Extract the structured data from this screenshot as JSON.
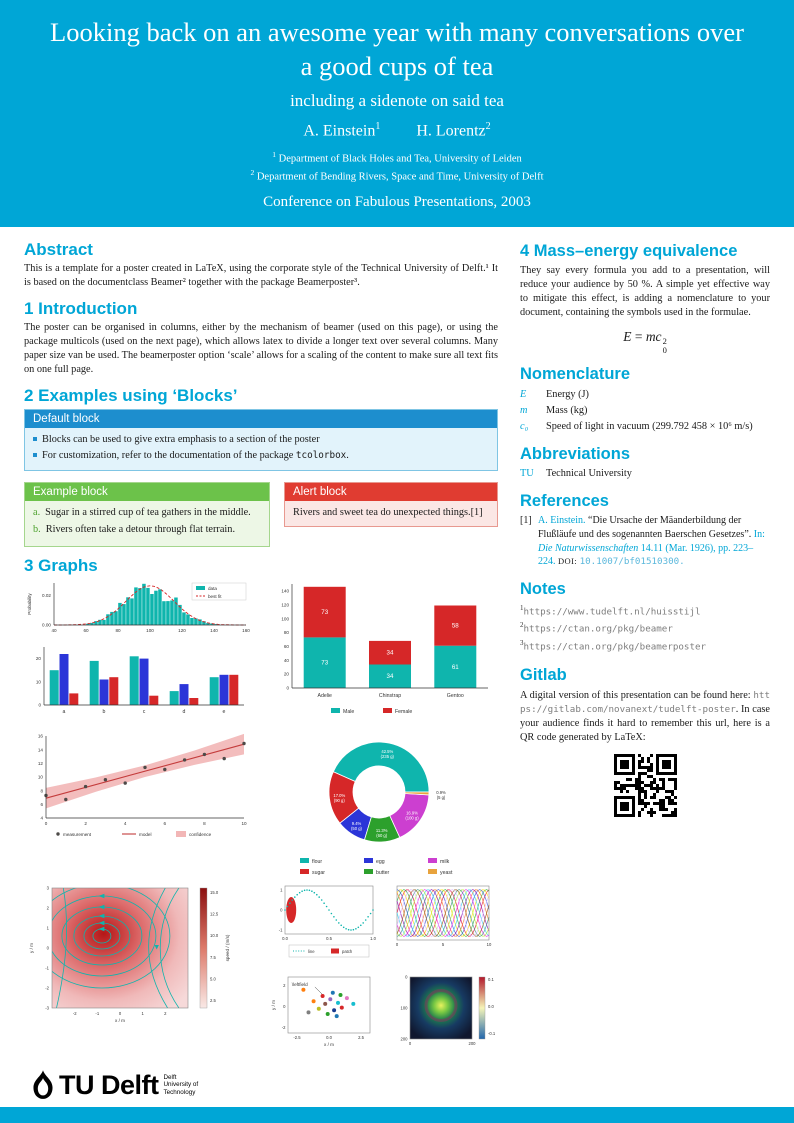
{
  "theme": {
    "accent": "#00A6D6",
    "default_block": "#1d8ece",
    "example_block": "#6CC24A",
    "alert_block": "#E03C31"
  },
  "header": {
    "title": "Looking back on an awesome year with many conversations over a good cups of tea",
    "subtitle": "including a sidenote on said tea",
    "authors": [
      {
        "name": "A. Einstein",
        "mark": "1"
      },
      {
        "name": "H. Lorentz",
        "mark": "2"
      }
    ],
    "affiliations": [
      {
        "mark": "1",
        "text": "Department of Black Holes and Tea, University of Leiden"
      },
      {
        "mark": "2",
        "text": "Department of Bending Rivers, Space and Time, University of Delft"
      }
    ],
    "conference": "Conference on Fabulous Presentations, 2003"
  },
  "abstract": {
    "title": "Abstract",
    "body": "This is a template for a poster created in LaTeX, using the corporate style of the Technical University of Delft.¹ It is based on the documentclass Beamer² together with the package Beamerposter³."
  },
  "introduction": {
    "title": "1 Introduction",
    "body": "The poster can be organised in columns, either by the mechanism of beamer (used on this page), or using the package multicols (used on the next page), which allows latex to divide a longer text over several columns. Many paper size van be used. The beamerposter option ‘scale’ allows for a scaling of the content to make sure all text fits on one full page."
  },
  "blocks": {
    "title": "2 Examples using ‘Blocks’",
    "default": {
      "title": "Default block",
      "items": [
        {
          "text": "Blocks can be used to give extra emphasis to a section of the poster"
        },
        {
          "pre": "For customization, refer to the documentation of the package ",
          "mono": "tcolorbox",
          "post": "."
        }
      ]
    },
    "example": {
      "title": "Example block",
      "items": [
        {
          "label": "a.",
          "text": "Sugar in a stirred cup of tea gathers in the middle."
        },
        {
          "label": "b.",
          "text": "Rivers often take a detour through flat terrain."
        }
      ]
    },
    "alert": {
      "title": "Alert block",
      "text": "Rivers and sweet tea do unexpected things.[1]"
    }
  },
  "graphs": {
    "title": "3 Graphs"
  },
  "mass_energy": {
    "title": "4 Mass–energy equivalence",
    "body": "They say every formula you add to a presentation, will reduce your audience by 50 %. A simple yet effective way to mitigate this effect, is adding a nomenclature to your document, containing the symbols used in the formulae.",
    "formula": {
      "lh s": "",
      "lhs": "E",
      "eq": "=",
      "rhs": "mc",
      "sup": "2",
      "sub": "0"
    }
  },
  "nomenclature": {
    "title": "Nomenclature",
    "entries": [
      {
        "symbol": "E",
        "desc": "Energy (J)"
      },
      {
        "symbol": "m",
        "desc": "Mass (kg)"
      },
      {
        "symbol": "c₀",
        "desc": "Speed of light in vacuum (299.792 458 × 10⁶ m/s)"
      }
    ]
  },
  "abbreviations": {
    "title": "Abbreviations",
    "entries": [
      {
        "abbr": "TU",
        "desc": "Technical University"
      }
    ]
  },
  "references": {
    "title": "References",
    "items": [
      {
        "label": "[1]",
        "author": "A. Einstein. ",
        "title": "“Die Ursache der Mäanderbildung der Flußläufe und des sogenannten Baerschen Gesetzes”. ",
        "in": "In: ",
        "journal": "Die Naturwissenschaften ",
        "pages": "14.11 (Mar. 1926), pp. 223–224. ",
        "doi_label": "DOI: ",
        "doi": "10.1007/bf01510300."
      }
    ]
  },
  "notes": {
    "title": "Notes",
    "items": [
      {
        "mark": "1",
        "url": "https://www.tudelft.nl/huisstijl"
      },
      {
        "mark": "2",
        "url": "https://ctan.org/pkg/beamer"
      },
      {
        "mark": "3",
        "url": "https://ctan.org/pkg/beamerposter"
      }
    ]
  },
  "gitlab": {
    "title": "Gitlab",
    "text_before": "A digital version of this presentation can be found here: ",
    "url": "https://gitlab.com/novanext/tudelft-poster",
    "text_after": ". In case your audience finds it hard to remember this url, here is a QR code generated by LaTeX:"
  },
  "logo": {
    "brand": "TU Delft",
    "sub": [
      "Delft",
      "University of",
      "Technology"
    ]
  },
  "chart_data": [
    {
      "id": "histogram",
      "type": "histogram",
      "ylabel": "Probability",
      "x_range": [
        40,
        160
      ],
      "x_ticks": [
        40,
        60,
        80,
        100,
        120,
        140,
        160
      ],
      "y_ticks": [
        "0.00",
        "0.02"
      ],
      "mean": 100,
      "std": 15,
      "bins": 48,
      "legend": [
        "data",
        "best fit"
      ],
      "colors": {
        "data": "#0fb5ad",
        "fit": "#d62728"
      }
    },
    {
      "id": "grouped_bar",
      "type": "bar",
      "categories": [
        "a",
        "b",
        "c",
        "d",
        "e"
      ],
      "y_ticks": [
        0,
        10,
        20
      ],
      "ylim": [
        0,
        25
      ],
      "series": [
        {
          "color": "#0fb5ad",
          "values": [
            15,
            19,
            21,
            6,
            12
          ]
        },
        {
          "color": "#2b35d8",
          "values": [
            22,
            11,
            20,
            9,
            13
          ]
        },
        {
          "color": "#d62728",
          "values": [
            5,
            12,
            4,
            3,
            13
          ]
        }
      ]
    },
    {
      "id": "stacked_bar",
      "type": "stacked_bar",
      "categories": [
        "Adelie",
        "Chinstrap",
        "Gentoo"
      ],
      "ylim": [
        0,
        150
      ],
      "y_ticks": [
        0,
        20,
        40,
        60,
        80,
        100,
        120,
        140
      ],
      "series": [
        {
          "name": "Male",
          "color": "#0fb5ad",
          "values": [
            73,
            34,
            61
          ]
        },
        {
          "name": "Female",
          "color": "#d62728",
          "values": [
            73,
            34,
            58
          ]
        }
      ]
    },
    {
      "id": "regression",
      "type": "scatter_fit",
      "xlim": [
        0,
        10
      ],
      "ylim": [
        4,
        16
      ],
      "x_ticks": [
        0,
        2,
        4,
        6,
        8,
        10
      ],
      "y_ticks": [
        4,
        6,
        8,
        10,
        12,
        14,
        16
      ],
      "points": [
        [
          0,
          7.3
        ],
        [
          1,
          6.7
        ],
        [
          2,
          8.6
        ],
        [
          3,
          9.6
        ],
        [
          4,
          9.1
        ],
        [
          5,
          11.4
        ],
        [
          6,
          11.1
        ],
        [
          7,
          12.5
        ],
        [
          8,
          13.3
        ],
        [
          9,
          12.7
        ],
        [
          10,
          14.9
        ]
      ],
      "fit": {
        "intercept": 6.9,
        "slope": 0.79
      },
      "legend": [
        "measurement",
        "model",
        "confidence"
      ],
      "colors": {
        "point": "#4d4a48",
        "line": "#c43c3c",
        "band": "#f2b6b6"
      }
    },
    {
      "id": "donut",
      "type": "donut",
      "slices": [
        {
          "label": "flour",
          "pct": 42.5,
          "grams": "235 g",
          "color": "#0fb5ad"
        },
        {
          "label": "sugar",
          "pct": 17.0,
          "grams": "90 g",
          "color": "#d62728"
        },
        {
          "label": "egg",
          "pct": 9.4,
          "grams": "50 g",
          "color": "#2b35d8"
        },
        {
          "label": "butter",
          "pct": 11.3,
          "grams": "60 g",
          "color": "#2ca02c"
        },
        {
          "label": "milk",
          "pct": 16.9,
          "grams": "100 g",
          "color": "#cc3fd0"
        },
        {
          "label": "yeast",
          "pct": 0.9,
          "grams": "5 g",
          "color": "#e8a33d"
        }
      ]
    },
    {
      "id": "streamplot",
      "type": "streamplot",
      "xlabel": "x / m",
      "ylabel": "y / m",
      "x_ticks": [
        -2,
        -1,
        0,
        1,
        2
      ],
      "y_ticks": [
        3,
        2,
        1,
        0,
        -1,
        -2,
        -3
      ],
      "line_color": "#0fb5ad",
      "colorbar": {
        "label": "speed / (m/s)",
        "ticks": [
          "15.0",
          "12.5",
          "10.0",
          "7.5",
          "5.0",
          "2.5"
        ]
      }
    },
    {
      "id": "line_patch",
      "type": "line_patch",
      "x_ticks": [
        "0.0",
        "0.5",
        "1.0"
      ],
      "y_ticks": [
        "1",
        "0",
        "-1"
      ],
      "legend": [
        "line",
        "patch"
      ],
      "colors": {
        "line": "#0fb5ad",
        "patch": "#d62728"
      }
    },
    {
      "id": "multilines",
      "type": "multiline",
      "x_ticks": [
        0,
        5,
        10
      ],
      "colors": [
        "#e6194b",
        "#3cb44b",
        "#ffe119",
        "#4363d8",
        "#f58231",
        "#911eb4",
        "#42d4f4",
        "#f032e6",
        "#bfef45",
        "#469990",
        "#9a6324",
        "#dcbeff"
      ]
    },
    {
      "id": "scatter_field",
      "type": "scatter",
      "xlabel": "x / m",
      "ylabel": "y / m",
      "x_ticks": [
        "-2.5",
        "0.0",
        "2.5"
      ],
      "y_ticks": [
        "2",
        "0",
        "-2"
      ],
      "annotation": "\\leftfield",
      "points": [
        [
          -0.5,
          1.0,
          "#d62728"
        ],
        [
          0.3,
          1.3,
          "#1f77b4"
        ],
        [
          0.9,
          1.1,
          "#2ca02c"
        ],
        [
          -1.2,
          0.5,
          "#ff7f0e"
        ],
        [
          0.1,
          0.7,
          "#9467bd"
        ],
        [
          0.7,
          0.35,
          "#17becf"
        ],
        [
          -0.3,
          0.25,
          "#8c564b"
        ],
        [
          1.4,
          0.8,
          "#e377c2"
        ],
        [
          -0.8,
          -0.2,
          "#bcbd22"
        ],
        [
          0.4,
          -0.35,
          "#1a3c8f"
        ],
        [
          1.0,
          -0.1,
          "#d62728"
        ],
        [
          -0.1,
          -0.7,
          "#2ca02c"
        ],
        [
          0.6,
          -0.9,
          "#1f77b4"
        ],
        [
          -1.6,
          -0.55,
          "#7f7f7f"
        ],
        [
          1.9,
          0.25,
          "#17becf"
        ],
        [
          -2.0,
          1.6,
          "#ff7f0e"
        ]
      ]
    },
    {
      "id": "imshow",
      "type": "imshow",
      "x_ticks": [
        0,
        200
      ],
      "y_ticks": [
        0,
        100,
        200
      ],
      "colorbar_ticks": [
        "0.1",
        "0.0",
        "-0.1"
      ]
    }
  ]
}
